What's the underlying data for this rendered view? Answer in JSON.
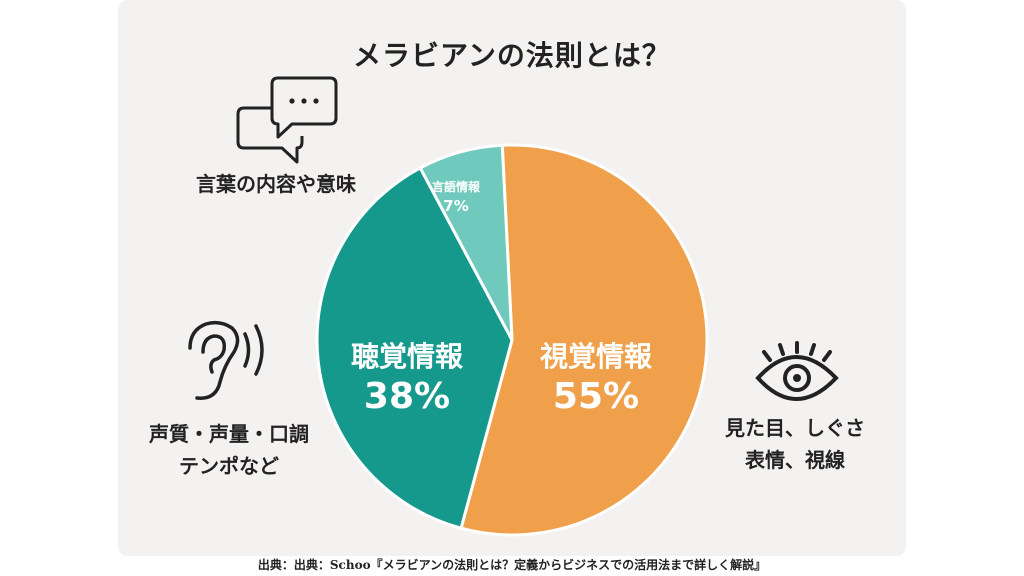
{
  "chart_data": {
    "type": "pie",
    "title": "メラビアンの法則とは？",
    "slices": [
      {
        "label": "視覚情報",
        "value": 55,
        "value_label": "55%",
        "color": "#f0a04b"
      },
      {
        "label": "聴覚情報",
        "value": 38,
        "value_label": "38%",
        "color": "#14998c"
      },
      {
        "label": "言語情報",
        "value": 7,
        "value_label": "7%",
        "color": "#6fc9bc"
      }
    ]
  },
  "annotations": {
    "verbal": "言葉の内容や意味",
    "vocal_line1": "声質・声量・口調",
    "vocal_line2": "テンポなど",
    "visual_line1": "見た目、しぐさ",
    "visual_line2": "表情、視線"
  },
  "icons": [
    "speech-bubbles-icon",
    "ear-icon",
    "eye-icon"
  ],
  "source": "出典：出典：Schoo『メラビアンの法則とは？定義からビジネスでの活用法まで詳しく解説』"
}
